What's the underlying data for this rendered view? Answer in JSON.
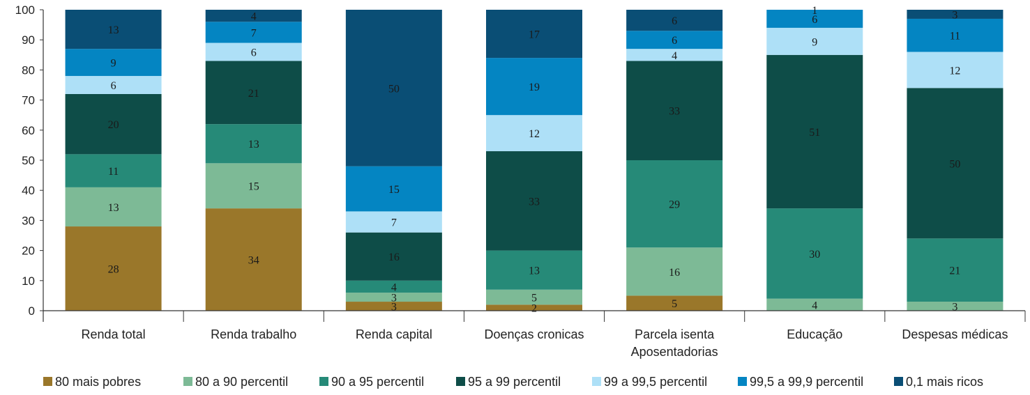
{
  "chart_data": {
    "type": "bar",
    "stacked": true,
    "title": "",
    "xlabel": "",
    "ylabel": "",
    "ylim": [
      0,
      100
    ],
    "yticks": [
      0,
      10,
      20,
      30,
      40,
      50,
      60,
      70,
      80,
      90,
      100
    ],
    "grid": false,
    "legend_position": "bottom",
    "categories": [
      [
        "Renda total"
      ],
      [
        "Renda trabalho"
      ],
      [
        "Renda capital"
      ],
      [
        "Doenças cronicas"
      ],
      [
        "Parcela isenta",
        "Aposentadorias"
      ],
      [
        "Educação"
      ],
      [
        "Despesas médicas"
      ]
    ],
    "series": [
      {
        "name": "80 mais pobres",
        "color": "#9a772a",
        "values": [
          28,
          34,
          3,
          2,
          5,
          0,
          0
        ]
      },
      {
        "name": "80 a 90 percentil",
        "color": "#7dba96",
        "values": [
          13,
          15,
          3,
          5,
          16,
          4,
          3
        ]
      },
      {
        "name": "90 a 95 percentil",
        "color": "#268a78",
        "values": [
          11,
          13,
          4,
          13,
          29,
          30,
          21
        ]
      },
      {
        "name": "95 a 99 percentil",
        "color": "#0e4d48",
        "values": [
          20,
          21,
          16,
          33,
          33,
          51,
          50
        ]
      },
      {
        "name": "99 a 99,5 percentil",
        "color": "#aee0f7",
        "values": [
          6,
          6,
          7,
          12,
          4,
          9,
          12
        ]
      },
      {
        "name": "99,5 a 99,9 percentil",
        "color": "#0485c2",
        "values": [
          9,
          7,
          15,
          19,
          6,
          6,
          11
        ]
      },
      {
        "name": "0,1 mais ricos",
        "color": "#0a4e75",
        "values": [
          13,
          4,
          50,
          17,
          6,
          1,
          3
        ]
      }
    ]
  }
}
